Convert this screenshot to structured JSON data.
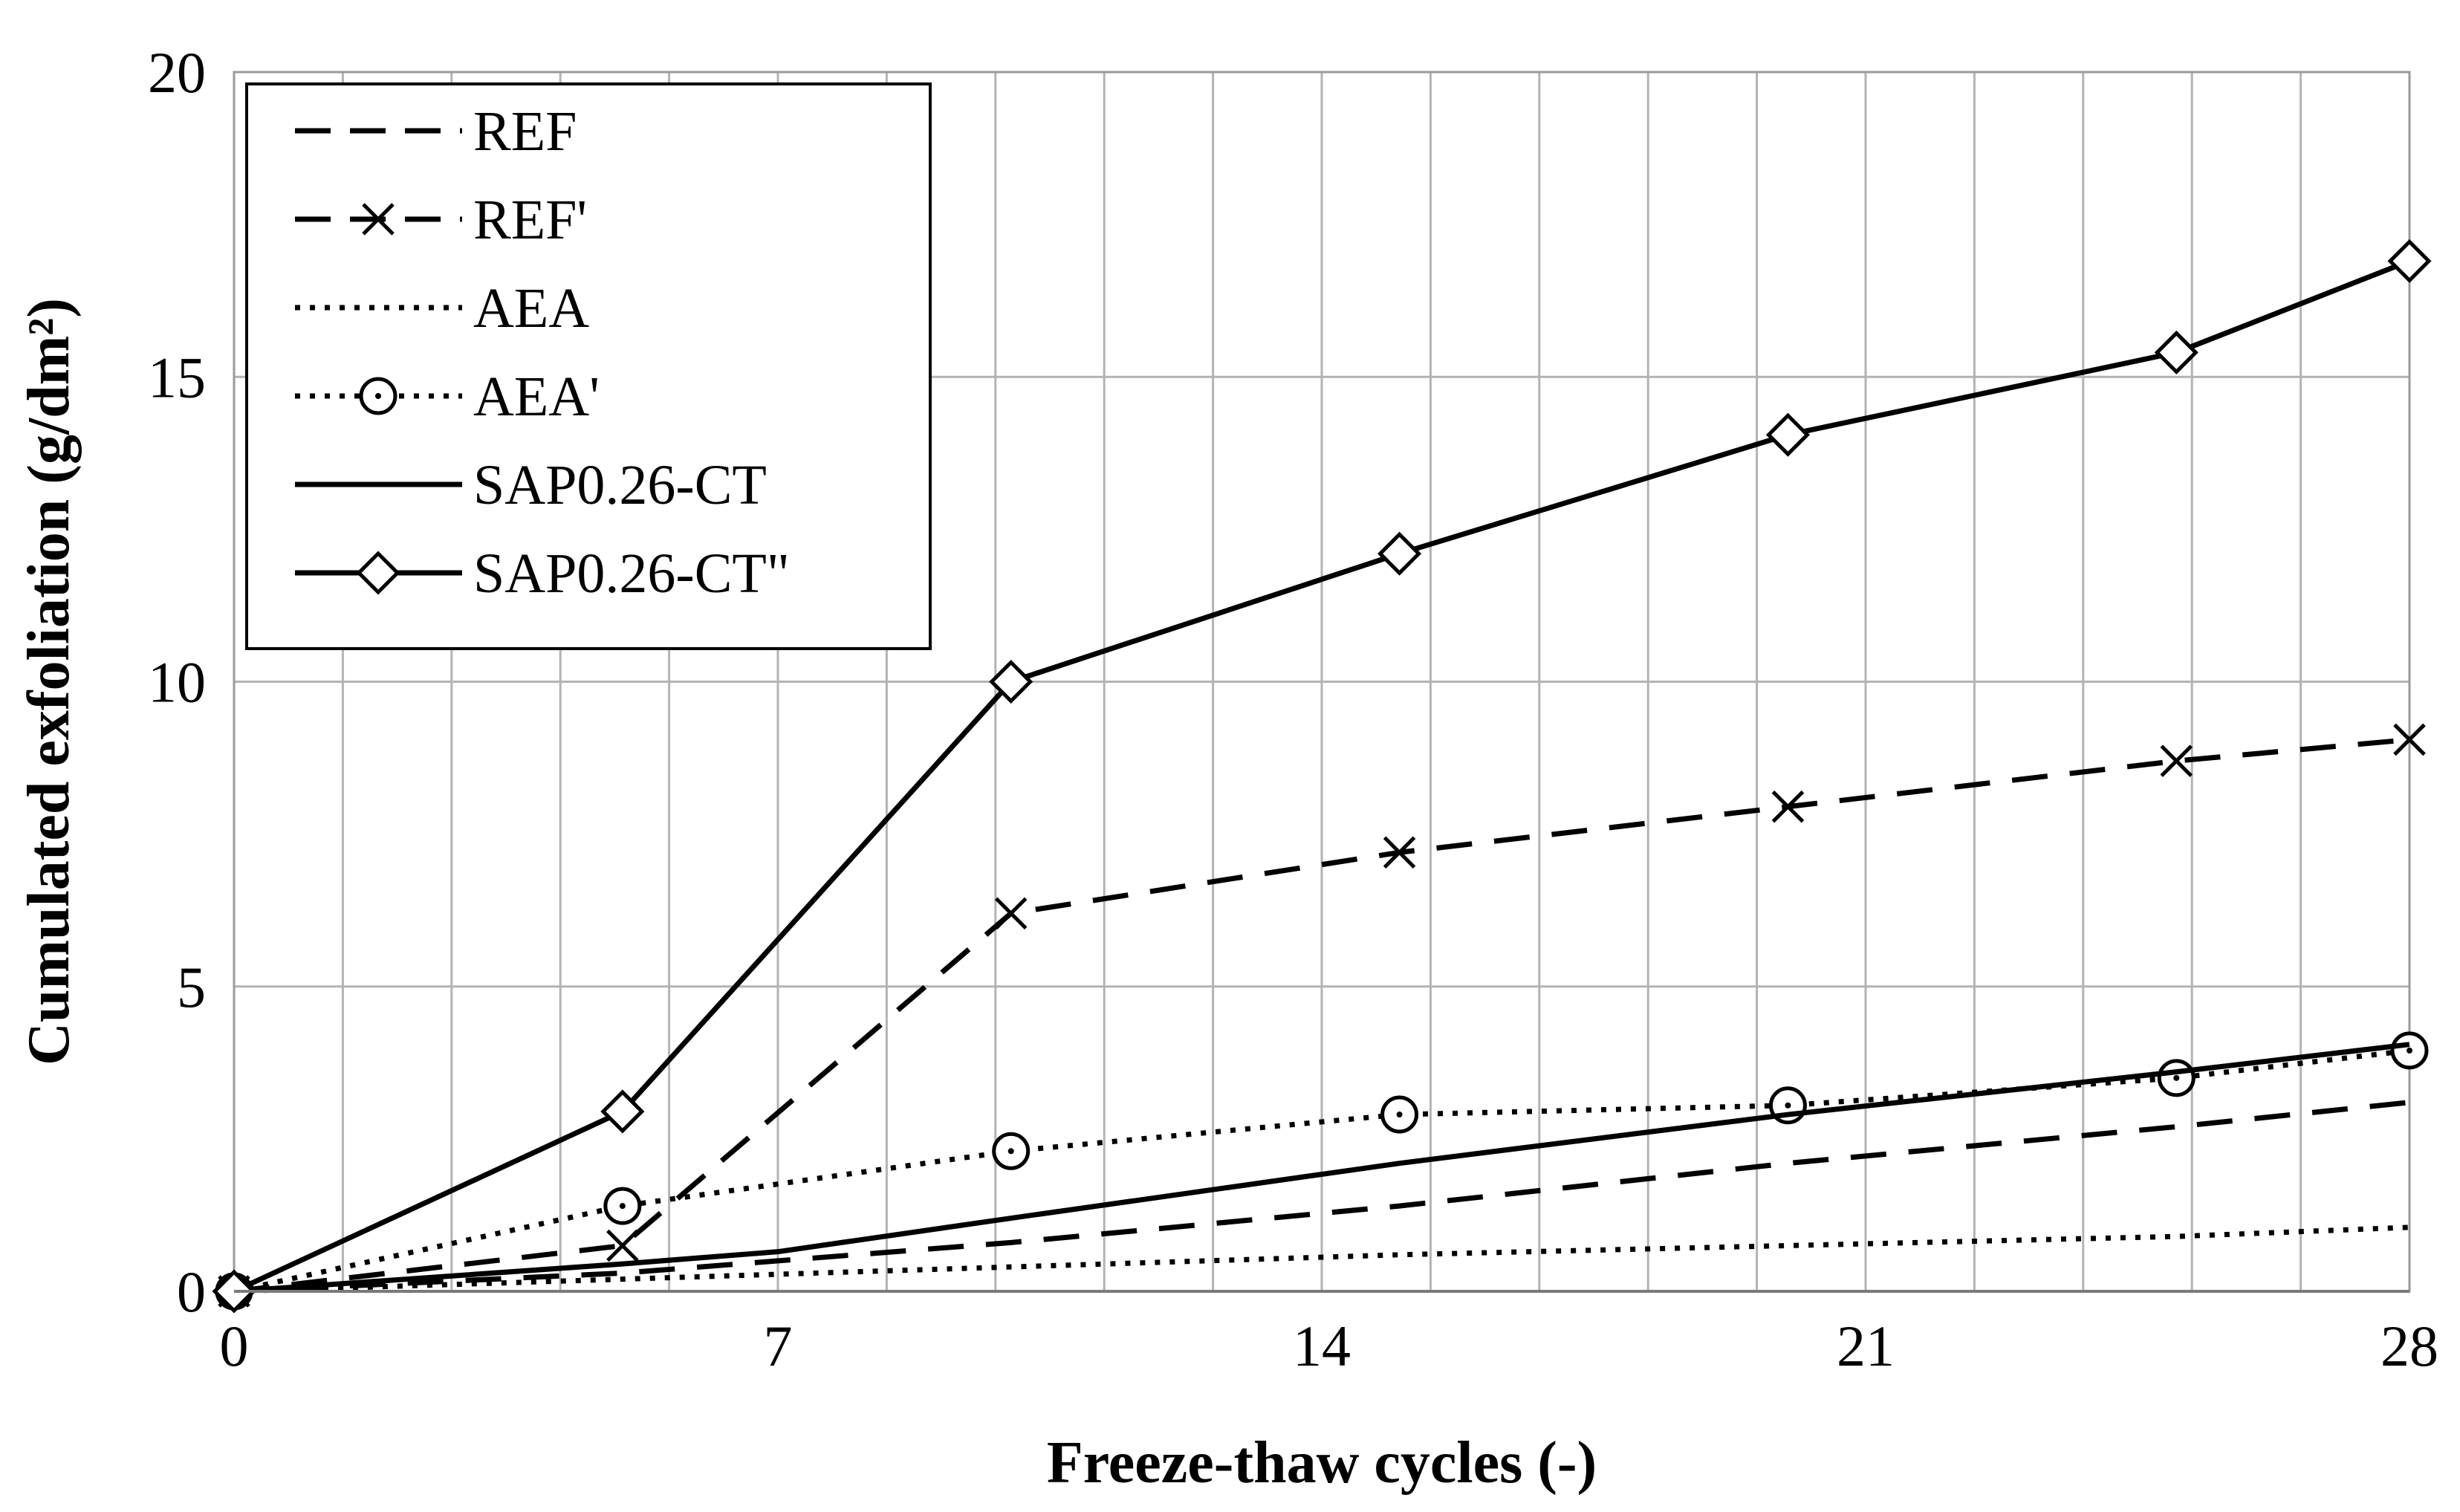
{
  "chart_data": {
    "type": "line",
    "title": "",
    "xlabel": "Freeze-thaw cycles (-)",
    "ylabel": "Cumulated exfoliation (g/dm²)",
    "xlim": [
      0,
      28
    ],
    "ylim": [
      0,
      20
    ],
    "xticks": [
      0,
      7,
      14,
      21,
      28
    ],
    "yticks": [
      0,
      5,
      10,
      15,
      20
    ],
    "x_minor_grid_step": 1.4,
    "grid": true,
    "legend_position": "top-left",
    "series": [
      {
        "name": "REF",
        "style": "dashed",
        "marker": "none",
        "x": [
          0,
          5,
          10,
          15,
          20,
          25,
          28
        ],
        "y": [
          0,
          0.3,
          0.8,
          1.4,
          2.1,
          2.7,
          3.1
        ]
      },
      {
        "name": "REF'",
        "style": "dashed",
        "marker": "x",
        "x": [
          0,
          5,
          10,
          15,
          20,
          25,
          28
        ],
        "y": [
          0,
          0.75,
          6.2,
          7.2,
          7.95,
          8.7,
          9.05
        ]
      },
      {
        "name": "AEA",
        "style": "dotted",
        "marker": "none",
        "x": [
          0,
          5,
          10,
          15,
          20,
          25,
          28
        ],
        "y": [
          0,
          0.2,
          0.4,
          0.6,
          0.75,
          0.9,
          1.05
        ]
      },
      {
        "name": "AEA'",
        "style": "dotted",
        "marker": "circle",
        "x": [
          0,
          5,
          10,
          15,
          20,
          25,
          28
        ],
        "y": [
          0,
          1.4,
          2.3,
          2.9,
          3.05,
          3.5,
          3.95
        ]
      },
      {
        "name": "SAP0.26-CT",
        "style": "solid",
        "marker": "none",
        "x": [
          0,
          5,
          7,
          10,
          15,
          20,
          25,
          28
        ],
        "y": [
          0,
          0.45,
          0.65,
          1.2,
          2.1,
          2.9,
          3.6,
          4.05
        ]
      },
      {
        "name": "SAP0.26-CT\"",
        "style": "solid",
        "marker": "diamond",
        "x": [
          0,
          5,
          10,
          15,
          20,
          25,
          28
        ],
        "y": [
          0,
          2.95,
          10.0,
          12.1,
          14.05,
          15.4,
          16.9
        ]
      }
    ]
  }
}
